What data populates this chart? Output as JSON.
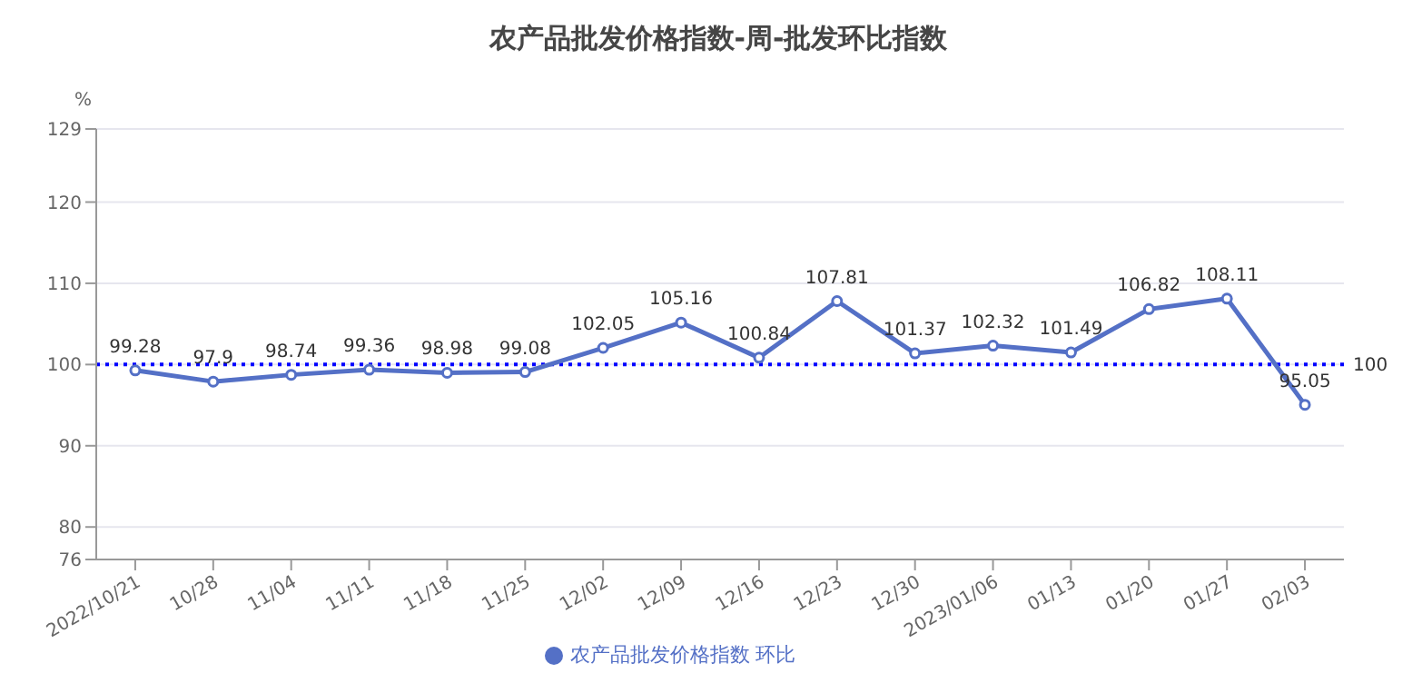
{
  "chart_data": {
    "type": "line",
    "title": "农产品批发价格指数-周-批发环比指数",
    "ylabel": "%",
    "categories": [
      "2022/10/21",
      "10/28",
      "11/04",
      "11/11",
      "11/18",
      "11/25",
      "12/02",
      "12/09",
      "12/16",
      "12/23",
      "12/30",
      "2023/01/06",
      "01/13",
      "01/20",
      "01/27",
      "02/03"
    ],
    "series": [
      {
        "name": "农产品批发价格指数 环比",
        "color": "#5470c6",
        "values": [
          99.28,
          97.9,
          98.74,
          99.36,
          98.98,
          99.08,
          102.05,
          105.16,
          100.84,
          107.81,
          101.37,
          102.32,
          101.49,
          106.82,
          108.11,
          95.05
        ]
      }
    ],
    "ylim": [
      76,
      129
    ],
    "yticks": [
      76,
      80,
      90,
      100,
      110,
      120,
      129
    ],
    "ref_lines": [
      {
        "axis": "y",
        "value": 100,
        "label": "100",
        "color": "#0000ff",
        "line_style": "dotted"
      }
    ],
    "data_labels": true,
    "grid": "y",
    "legend": "bottom",
    "marker": "circle",
    "line_style": "solid"
  }
}
